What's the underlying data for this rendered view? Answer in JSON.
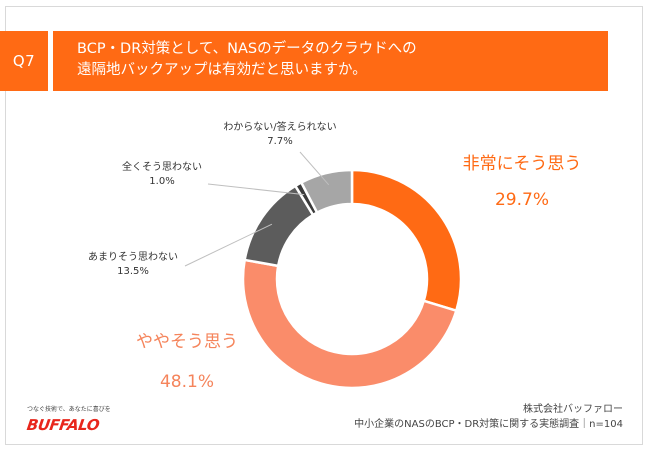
{
  "header": {
    "badge": "Q7",
    "question_line1": "BCP・DR対策として、NASのデータのクラウドへの",
    "question_line2": "遠隔地バックアップは有効だと思いますか。"
  },
  "chart_data": {
    "type": "donut",
    "unit": "%",
    "slices": [
      {
        "label": "非常にそう思う",
        "value": 29.7,
        "value_text": "29.7%",
        "color": "#ff6a14"
      },
      {
        "label": "ややそう思う",
        "value": 48.1,
        "value_text": "48.1%",
        "color": "#fa8c6a"
      },
      {
        "label": "あまりそう思わない",
        "value": 13.5,
        "value_text": "13.5%",
        "color": "#5c5c5c"
      },
      {
        "label": "全くそう思わない",
        "value": 1.0,
        "value_text": "1.0%",
        "color": "#3b3b3b"
      },
      {
        "label": "わからない/答えられない",
        "value": 7.7,
        "value_text": "7.7%",
        "color": "#a6a6a6"
      }
    ]
  },
  "footer": {
    "tagline": "つなぐ技術で、あなたに喜びを",
    "logo": "BUFFALO",
    "company": "株式会社バッファロー",
    "survey": "中小企業のNASのBCP・DR対策に関する実態調査｜n=104"
  }
}
